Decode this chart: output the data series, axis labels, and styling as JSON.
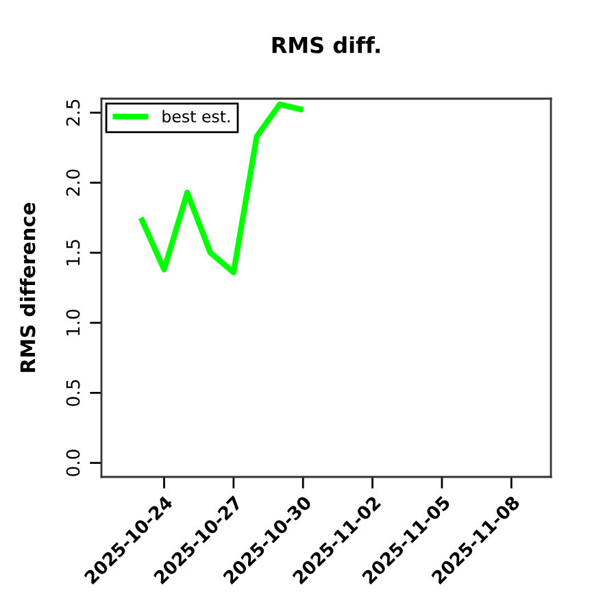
{
  "chart_data": {
    "type": "line",
    "title": "RMS diff.",
    "ylabel": "RMS difference",
    "series": [
      {
        "name": "best est.",
        "color": "#00ff00",
        "x": [
          "2025-10-23",
          "2025-10-24",
          "2025-10-25",
          "2025-10-26",
          "2025-10-27",
          "2025-10-28",
          "2025-10-29",
          "2025-10-30"
        ],
        "values": [
          1.75,
          1.38,
          1.93,
          1.5,
          1.36,
          2.33,
          2.56,
          2.52
        ]
      }
    ],
    "xlim": [
      "2025-10-21T07:00",
      "2025-11-09T17:00"
    ],
    "xticks": [
      "2025-10-24",
      "2025-10-27",
      "2025-10-30",
      "2025-11-02",
      "2025-11-05",
      "2025-11-08"
    ],
    "ylim": [
      -0.1,
      2.6
    ],
    "yticks": [
      {
        "value": 0,
        "label": "0.0"
      },
      0.5,
      {
        "value": 1,
        "label": "1.0"
      },
      1.5,
      {
        "value": 2,
        "label": "2.0"
      },
      2.5
    ],
    "legend": "top left",
    "marker": "none",
    "line_style": "solid"
  }
}
